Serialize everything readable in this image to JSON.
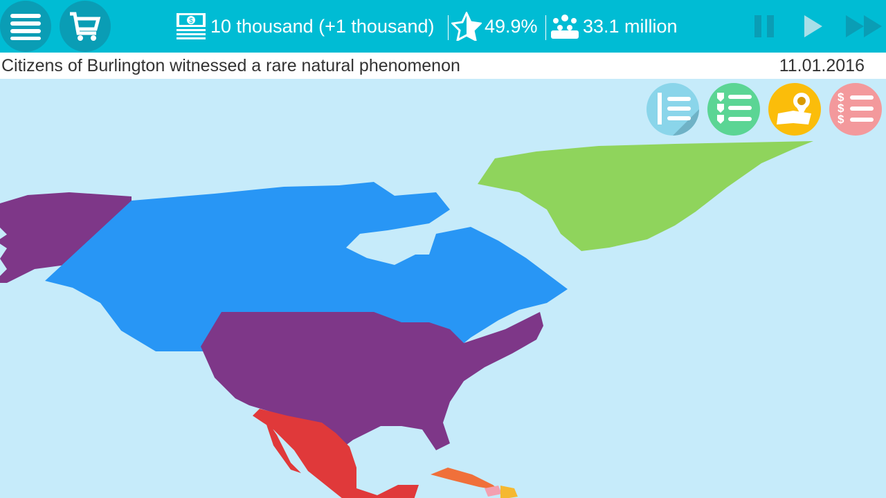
{
  "topbar": {
    "money": "10 thousand (+1 thousand)",
    "rating": "49.9%",
    "population": "33.1 million",
    "icons": [
      "menu-icon",
      "cart-icon",
      "money-icon",
      "star-icon",
      "people-icon",
      "pause-icon",
      "play-icon",
      "fast-forward-icon"
    ]
  },
  "news": {
    "headline": "Citizens of Burlington witnessed a rare natural phenomenon",
    "date": "11.01.2016"
  },
  "right_buttons": [
    "flags-list-icon",
    "shields-list-icon",
    "map-pin-icon",
    "dollar-list-icon"
  ],
  "colors": {
    "topbar": "#00bcd4",
    "ocean": "#c6ebfa",
    "usa": "#7e3788",
    "canada": "#2896f5",
    "greenland": "#8fd45c",
    "mexico": "#e0393a",
    "cuba": "#f0703a"
  }
}
